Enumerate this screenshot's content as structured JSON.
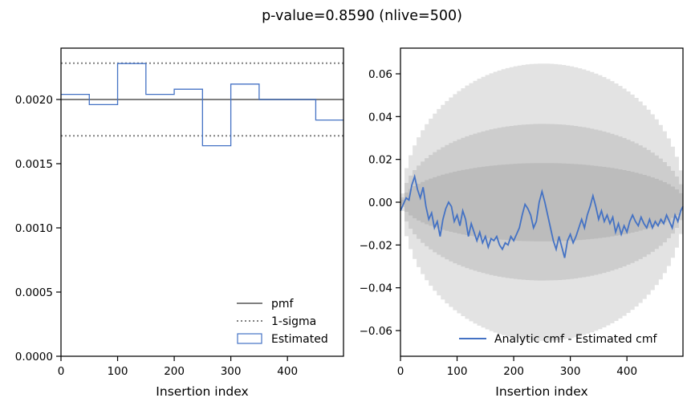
{
  "figure": {
    "title": "p-value=0.8590 (nlive=500)"
  },
  "colors": {
    "pmf": "#808080",
    "sigma": "#808080",
    "estimated": "#4472c4",
    "band": "#7f7f7f",
    "axis": "#000000",
    "background": "#ffffff"
  },
  "chart_data": [
    {
      "type": "step",
      "xlabel": "Insertion index",
      "ylabel": "",
      "xlim": [
        0,
        499
      ],
      "ylim": [
        0,
        0.0024
      ],
      "xticks": [
        0,
        100,
        200,
        300,
        400
      ],
      "xtick_labels": [
        "0",
        "100",
        "200",
        "300",
        "400"
      ],
      "yticks": [
        0,
        0.0005,
        0.001,
        0.0015,
        0.002
      ],
      "ytick_labels": [
        "0.0000",
        "0.0005",
        "0.0010",
        "0.0015",
        "0.0020"
      ],
      "pmf": 0.002,
      "sigma_band": [
        0.001717,
        0.002283
      ],
      "bin_edges": [
        0,
        50,
        100,
        150,
        200,
        250,
        300,
        350,
        400,
        450,
        499
      ],
      "estimated": [
        0.00204,
        0.00196,
        0.00228,
        0.00204,
        0.00208,
        0.00164,
        0.00212,
        0.002,
        0.002,
        0.00184
      ],
      "legend": {
        "placement": "lower-right",
        "entries": [
          "pmf",
          "1-sigma",
          "Estimated"
        ]
      }
    },
    {
      "type": "line",
      "xlabel": "Insertion index",
      "ylabel": "",
      "xlim": [
        0,
        499
      ],
      "ylim": [
        -0.072,
        0.072
      ],
      "xticks": [
        0,
        100,
        200,
        300,
        400
      ],
      "xtick_labels": [
        "0",
        "100",
        "200",
        "300",
        "400"
      ],
      "yticks": [
        -0.06,
        -0.04,
        -0.02,
        0.0,
        0.02,
        0.04,
        0.06
      ],
      "ytick_labels": [
        "−0.06",
        "−0.04",
        "−0.02",
        "0.00",
        "0.02",
        "0.04",
        "0.06"
      ],
      "bands_sigma": [
        1,
        2,
        3
      ],
      "bands_peak": [
        0.0183,
        0.0366,
        0.0648
      ],
      "series": [
        {
          "name": "Analytic cmf - Estimated cmf",
          "x": [
            0,
            5,
            10,
            15,
            20,
            25,
            30,
            35,
            40,
            45,
            50,
            55,
            60,
            65,
            70,
            75,
            80,
            85,
            90,
            95,
            100,
            105,
            110,
            115,
            120,
            125,
            130,
            135,
            140,
            145,
            150,
            155,
            160,
            165,
            170,
            175,
            180,
            185,
            190,
            195,
            200,
            205,
            210,
            215,
            220,
            225,
            230,
            235,
            240,
            245,
            250,
            255,
            260,
            265,
            270,
            275,
            280,
            285,
            290,
            295,
            300,
            305,
            310,
            315,
            320,
            325,
            330,
            335,
            340,
            345,
            350,
            355,
            360,
            365,
            370,
            375,
            380,
            385,
            390,
            395,
            400,
            405,
            410,
            415,
            420,
            425,
            430,
            435,
            440,
            445,
            450,
            455,
            460,
            465,
            470,
            475,
            480,
            485,
            490,
            495,
            499
          ],
          "y": [
            -0.004,
            -0.001,
            0.002,
            0.001,
            0.008,
            0.012,
            0.006,
            0.002,
            0.007,
            -0.002,
            -0.008,
            -0.005,
            -0.012,
            -0.009,
            -0.016,
            -0.008,
            -0.003,
            0.0,
            -0.002,
            -0.009,
            -0.006,
            -0.011,
            -0.004,
            -0.008,
            -0.016,
            -0.01,
            -0.014,
            -0.018,
            -0.014,
            -0.019,
            -0.016,
            -0.021,
            -0.017,
            -0.018,
            -0.016,
            -0.02,
            -0.022,
            -0.019,
            -0.02,
            -0.016,
            -0.018,
            -0.015,
            -0.012,
            -0.006,
            -0.001,
            -0.003,
            -0.006,
            -0.012,
            -0.009,
            0.0,
            0.005,
            0.0,
            -0.006,
            -0.012,
            -0.018,
            -0.022,
            -0.016,
            -0.021,
            -0.026,
            -0.018,
            -0.015,
            -0.019,
            -0.016,
            -0.012,
            -0.008,
            -0.012,
            -0.006,
            -0.002,
            0.003,
            -0.002,
            -0.008,
            -0.004,
            -0.009,
            -0.006,
            -0.01,
            -0.007,
            -0.014,
            -0.01,
            -0.015,
            -0.011,
            -0.014,
            -0.009,
            -0.006,
            -0.009,
            -0.011,
            -0.007,
            -0.01,
            -0.012,
            -0.008,
            -0.012,
            -0.009,
            -0.011,
            -0.008,
            -0.01,
            -0.006,
            -0.009,
            -0.012,
            -0.006,
            -0.009,
            -0.004,
            -0.002
          ]
        }
      ],
      "legend": {
        "placement": "lower-right",
        "entries": [
          "Analytic cmf - Estimated cmf"
        ]
      }
    }
  ]
}
